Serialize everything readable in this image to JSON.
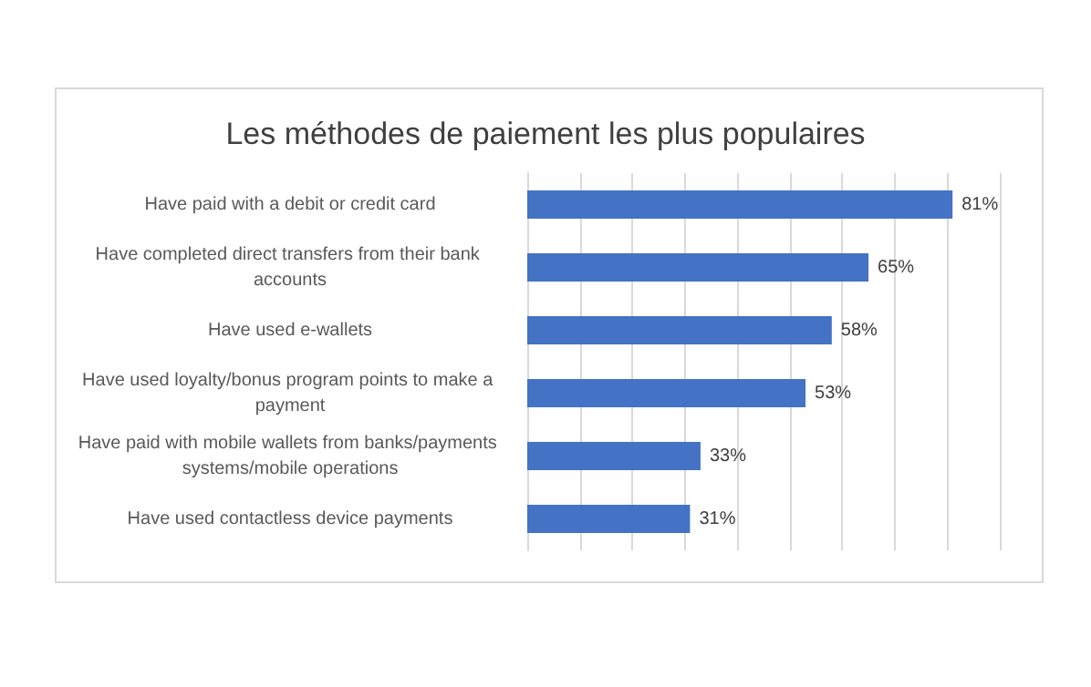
{
  "chart_data": {
    "type": "bar",
    "orientation": "horizontal",
    "title": "Les méthodes de paiement les plus populaires",
    "categories": [
      "Have paid with a debit or credit card",
      "Have completed direct transfers from their bank accounts",
      "Have used e-wallets",
      "Have used loyalty/bonus program points to make a payment",
      "Have paid with mobile wallets from banks/payments systems/mobile operations",
      "Have used contactless device payments"
    ],
    "values": [
      81,
      65,
      58,
      53,
      33,
      31
    ],
    "value_labels": [
      "81%",
      "65%",
      "58%",
      "53%",
      "33%",
      "31%"
    ],
    "color": "#4472c4",
    "xlim": [
      0,
      90
    ],
    "xticks": [
      {
        "value": 0,
        "label": null
      },
      {
        "value": 10,
        "label": null
      },
      {
        "value": 20,
        "label": null
      },
      {
        "value": 30,
        "label": null
      },
      {
        "value": 40,
        "label": null
      },
      {
        "value": 50,
        "label": null
      },
      {
        "value": 60,
        "label": null
      },
      {
        "value": 70,
        "label": null
      },
      {
        "value": 80,
        "label": null
      },
      {
        "value": 90,
        "label": null
      }
    ],
    "grid": "x",
    "tick_labels": "y"
  }
}
